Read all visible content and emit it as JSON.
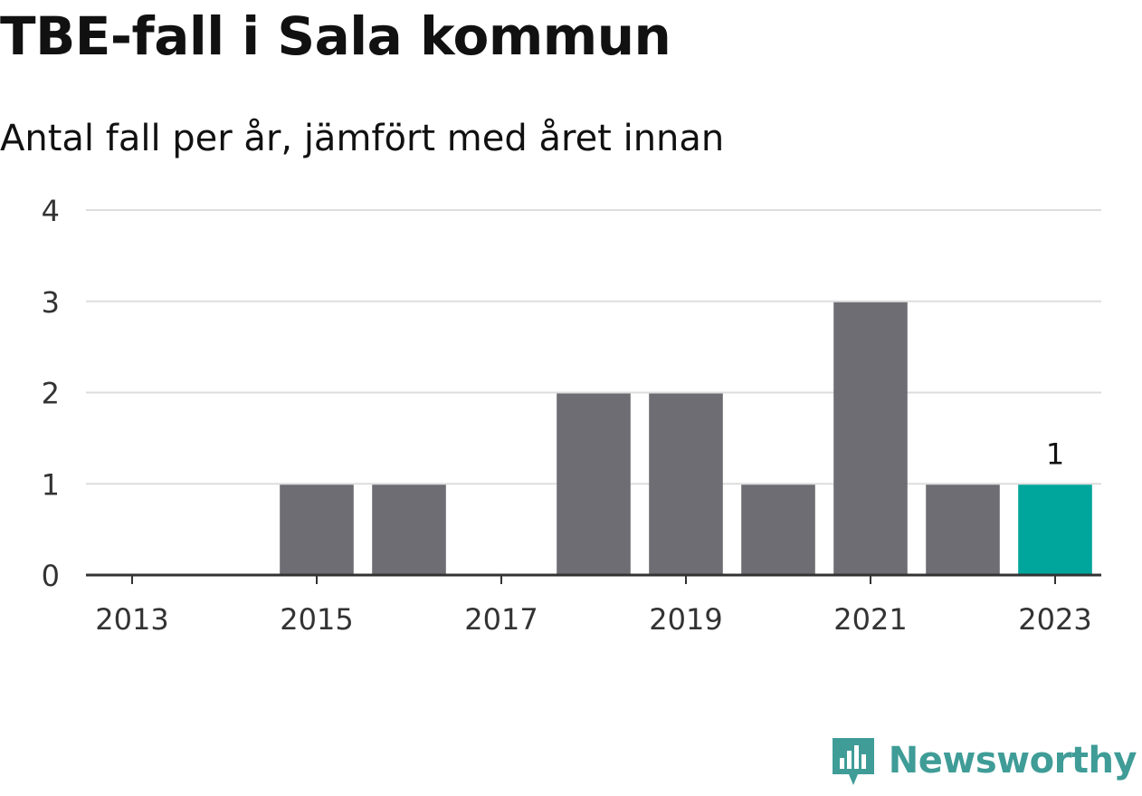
{
  "header": {
    "title": "TBE-fall i Sala kommun",
    "subtitle": "Antal fall per år, jämfört med året innan"
  },
  "brand": {
    "name": "Newsworthy",
    "color": "#3f9c97",
    "icon": "newsworthy-logo-icon"
  },
  "colors": {
    "bar": "#6e6d73",
    "highlight": "#00a59b",
    "grid": "#dddddd",
    "axis": "#333333"
  },
  "chart_data": {
    "type": "bar",
    "categories": [
      "2013",
      "2014",
      "2015",
      "2016",
      "2017",
      "2018",
      "2019",
      "2020",
      "2021",
      "2022",
      "2023"
    ],
    "values": [
      0,
      0,
      1,
      1,
      0,
      2,
      2,
      1,
      3,
      1,
      1
    ],
    "highlight_category": "2023",
    "data_labels": [
      {
        "category": "2023",
        "text": "1"
      }
    ],
    "x_tick_labels": [
      "2013",
      "2015",
      "2017",
      "2019",
      "2021",
      "2023"
    ],
    "y_ticks": [
      0,
      1,
      2,
      3,
      4
    ],
    "ylim": [
      0,
      4
    ],
    "grid": true,
    "legend": "none"
  }
}
